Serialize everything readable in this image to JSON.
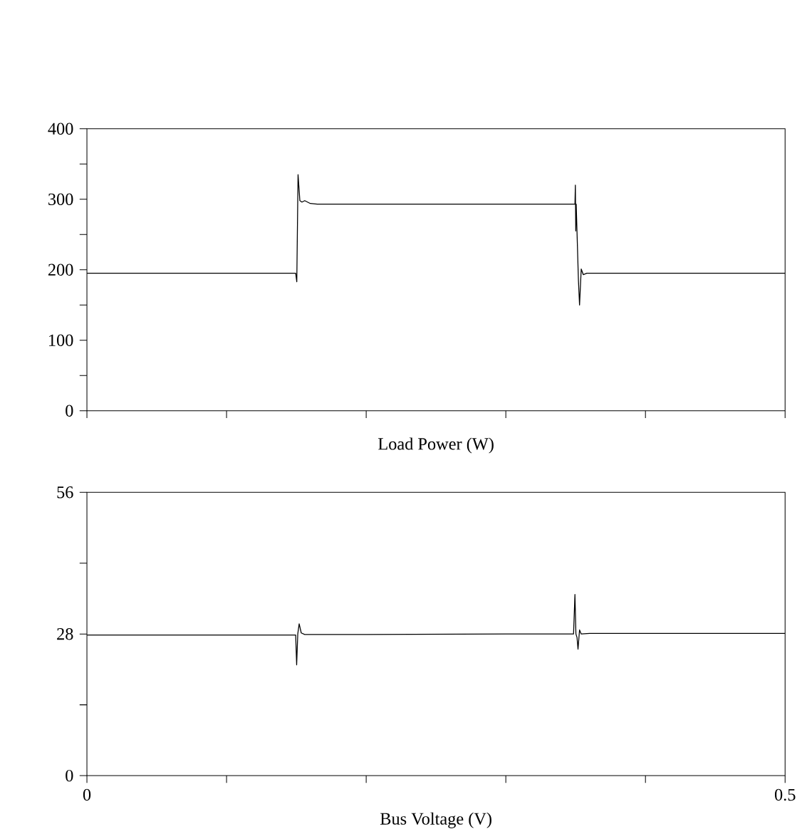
{
  "chart_data": [
    {
      "type": "line",
      "xlabel": "Load Power  (W)",
      "xlim": [
        0,
        0.5
      ],
      "xticks": [
        {
          "value": 0,
          "label": null
        },
        {
          "value": 0.1,
          "label": null
        },
        {
          "value": 0.2,
          "label": null
        },
        {
          "value": 0.3,
          "label": null
        },
        {
          "value": 0.4,
          "label": null
        },
        {
          "value": 0.5,
          "label": null
        }
      ],
      "ylim": [
        0,
        400
      ],
      "yticks": [
        0,
        {
          "value": 50,
          "label": null
        },
        100,
        {
          "value": 150,
          "label": null
        },
        200,
        {
          "value": 250,
          "label": null
        },
        300,
        {
          "value": 350,
          "label": null
        },
        400
      ],
      "tick_labels": "y",
      "grid": false,
      "series": [
        {
          "color": "#000000",
          "x": [
            0,
            0.05,
            0.1,
            0.1495,
            0.1503,
            0.1512,
            0.1525,
            0.154,
            0.156,
            0.16,
            0.165,
            0.25,
            0.3495,
            0.3498,
            0.3501,
            0.3504,
            0.352,
            0.3528,
            0.354,
            0.3555,
            0.358,
            0.4,
            0.5
          ],
          "values": [
            195,
            195,
            195,
            195,
            183,
            335,
            298,
            296,
            298,
            294,
            293,
            293,
            293,
            320,
            255,
            293,
            185,
            150,
            201,
            193,
            195,
            195,
            195
          ]
        }
      ]
    },
    {
      "type": "line",
      "xlabel": "Bus Voltage  (V)",
      "xlim": [
        0,
        0.5
      ],
      "xticks": [
        0,
        {
          "value": 0.1,
          "label": null
        },
        {
          "value": 0.2,
          "label": null
        },
        {
          "value": 0.3,
          "label": null
        },
        {
          "value": 0.4,
          "label": null
        },
        0.5
      ],
      "ylim": [
        0,
        56
      ],
      "yticks": [
        0,
        {
          "value": 14,
          "label": null
        },
        28,
        {
          "value": 42,
          "label": null
        },
        56
      ],
      "grid": false,
      "series": [
        {
          "color": "#000000",
          "x": [
            0,
            0.1,
            0.1495,
            0.1502,
            0.151,
            0.152,
            0.1535,
            0.156,
            0.2,
            0.3,
            0.3485,
            0.3495,
            0.3502,
            0.351,
            0.3517,
            0.3528,
            0.354,
            0.36,
            0.5
          ],
          "values": [
            27.8,
            27.8,
            27.8,
            21.9,
            28.0,
            30.0,
            28.2,
            27.9,
            27.9,
            28.0,
            28.0,
            35.8,
            28.0,
            27.3,
            25.0,
            28.8,
            28.0,
            28.1,
            28.1
          ]
        }
      ]
    }
  ]
}
